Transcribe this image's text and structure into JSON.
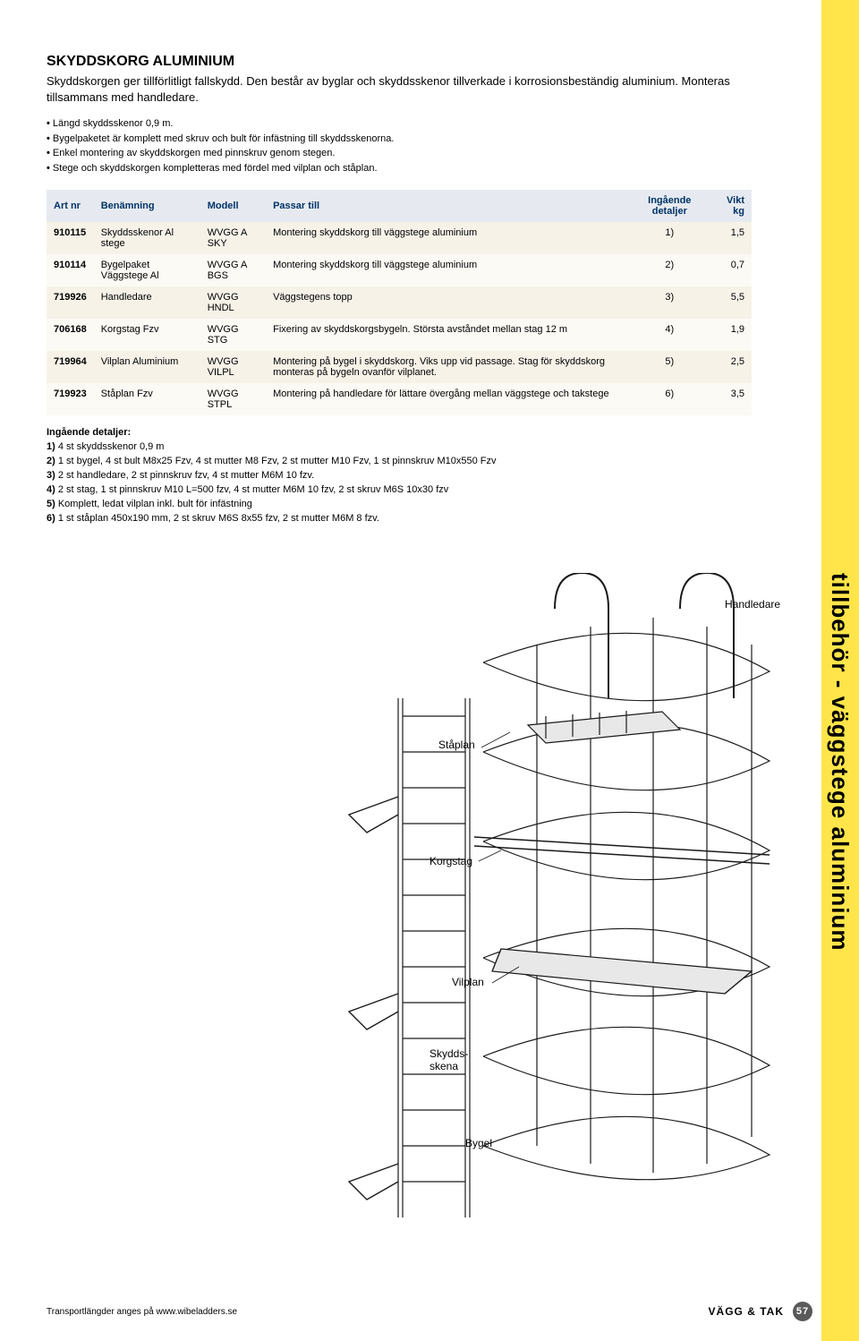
{
  "sideTab": {
    "bg": "#ffe54a",
    "text": "tillbehör - väggstege aluminium"
  },
  "title": "SKYDDSKORG ALUMINIUM",
  "intro": "Skyddskorgen ger tillförlitligt fallskydd. Den består av byglar och skyddsskenor tillverkade i korrosionsbeständig aluminium. Monteras tillsammans med handledare.",
  "bullets": [
    "Längd skyddsskenor 0,9 m.",
    "Bygelpaketet är komplett med skruv och bult för infästning till skyddsskenorna.",
    "Enkel montering av skyddskorgen med pinnskruv genom stegen.",
    "Stege och skyddskorgen kompletteras med fördel med vilplan och ståplan."
  ],
  "table": {
    "headers": [
      "Art nr",
      "Benämning",
      "Modell",
      "Passar till",
      "Ingående detaljer",
      "Vikt kg"
    ],
    "header_bg": "#e6eaf0",
    "header_color": "#003366",
    "row_colors": [
      "#f6f2e8",
      "#fcfaf4"
    ],
    "rows": [
      [
        "910115",
        "Skyddsskenor Al stege",
        "WVGG A SKY",
        "Montering skyddskorg till väggstege aluminium",
        "1)",
        "1,5"
      ],
      [
        "910114",
        "Bygelpaket Väggstege Al",
        "WVGG A BGS",
        "Montering skyddskorg till väggstege aluminium",
        "2)",
        "0,7"
      ],
      [
        "719926",
        "Handledare",
        "WVGG HNDL",
        "Väggstegens topp",
        "3)",
        "5,5"
      ],
      [
        "706168",
        "Korgstag Fzv",
        "WVGG STG",
        "Fixering av skyddskorgsbygeln. Största avståndet mellan stag 12 m",
        "4)",
        "1,9"
      ],
      [
        "719964",
        "Vilplan Aluminium",
        "WVGG VILPL",
        "Montering på bygel i skyddskorg. Viks upp vid passage. Stag för skyddskorg monteras på bygeln ovanför vilplanet.",
        "5)",
        "2,5"
      ],
      [
        "719923",
        "Ståplan Fzv",
        "WVGG STPL",
        "Montering på handledare för lättare övergång mellan väggstege och takstege",
        "6)",
        "3,5"
      ]
    ]
  },
  "details": {
    "heading": "Ingående detaljer:",
    "items": [
      "4 st skyddsskenor 0,9 m",
      "1 st bygel, 4 st bult M8x25 Fzv, 4 st mutter M8 Fzv, 2 st mutter M10 Fzv, 1 st pinnskruv M10x550 Fzv",
      "2 st handledare, 2 st pinnskruv fzv, 4 st mutter M6M 10 fzv.",
      "2 st stag, 1 st pinnskruv M10 L=500 fzv, 4 st mutter M6M 10 fzv, 2 st skruv M6S 10x30 fzv",
      "Komplett, ledat vilplan inkl. bult för infästning",
      "1 st ståplan 450x190 mm, 2 st skruv M6S 8x55 fzv, 2 st mutter M6M 8 fzv."
    ]
  },
  "diagram": {
    "labels": {
      "handledare": "Handledare",
      "staplan": "Ståplan",
      "korgstag": "Korgstag",
      "vilplan": "Vilplan",
      "skyddsskena": "Skydds-\nskena",
      "bygel": "Bygel"
    },
    "stroke": "#1a1a1a",
    "fill": "#f4f4f4"
  },
  "footer": {
    "left": "Transportlängder anges på www.wibeladders.se",
    "right_label": "VÄGG & TAK",
    "page": "57"
  }
}
